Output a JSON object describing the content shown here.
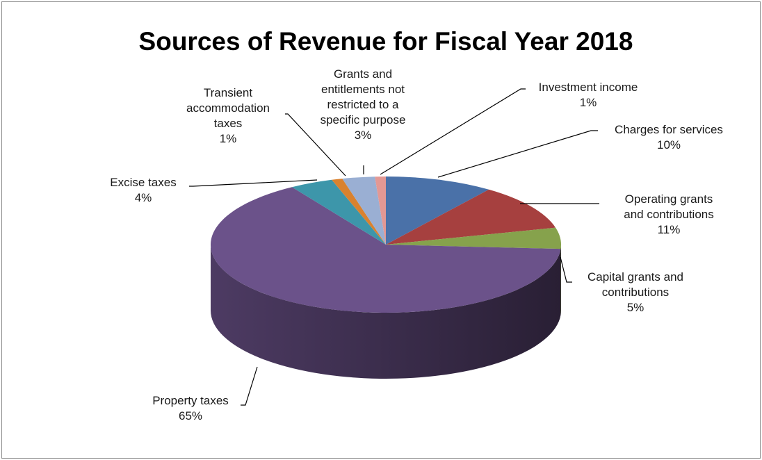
{
  "chart_data": {
    "type": "pie",
    "title": "Sources of Revenue for Fiscal Year 2018",
    "three_d": true,
    "slices": [
      {
        "lines": [
          "Charges for services",
          "10%"
        ],
        "value": 10,
        "color": "#4a71a8"
      },
      {
        "lines": [
          "Operating grants",
          "and contributions",
          "11%"
        ],
        "value": 11,
        "color": "#a6403f"
      },
      {
        "lines": [
          "Capital grants and",
          "contributions",
          "5%"
        ],
        "value": 5,
        "color": "#86a24c"
      },
      {
        "lines": [
          "Property taxes",
          "65%"
        ],
        "value": 65,
        "color": "#6b528a"
      },
      {
        "lines": [
          "Excise taxes",
          "4%"
        ],
        "value": 4,
        "color": "#3d96aa"
      },
      {
        "lines": [
          "Transient",
          "accommodation",
          "taxes",
          "1%"
        ],
        "value": 1,
        "color": "#d9822f"
      },
      {
        "lines": [
          "Grants and",
          "entitlements not",
          "restricted to a",
          "specific purpose",
          "3%"
        ],
        "value": 3,
        "color": "#9aafd3"
      },
      {
        "lines": [
          "Investment income",
          "1%"
        ],
        "value": 1,
        "color": "#e39894"
      }
    ]
  }
}
